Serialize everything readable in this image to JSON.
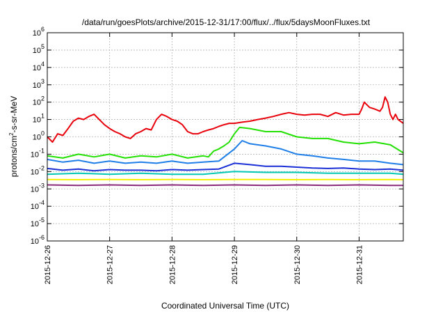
{
  "chart_data": {
    "type": "line",
    "title": "/data/run/goesPlots/archive/2015-12-31/17:00/flux/../flux/5daysMoonFluxes.txt",
    "xlabel": "Coordinated Universal Time (UTC)",
    "ylabel": "protons/cm²-s-sr-MeV",
    "ylabel_parts": [
      "protons/cm",
      "2",
      "-s-sr-MeV"
    ],
    "yscale": "log",
    "ylim": [
      1e-06,
      1000000.0
    ],
    "xlim": [
      "2015-12-26T00:00",
      "2015-12-31T17:00"
    ],
    "grid": true,
    "x_ticks": [
      "2015-12-26",
      "2015-12-27",
      "2015-12-28",
      "2015-12-29",
      "2015-12-30",
      "2015-12-31"
    ],
    "y_ticks": [
      {
        "base": "10",
        "exp": "-6"
      },
      {
        "base": "10",
        "exp": "-5"
      },
      {
        "base": "10",
        "exp": "-4"
      },
      {
        "base": "10",
        "exp": "-3"
      },
      {
        "base": "10",
        "exp": "-2"
      },
      {
        "base": "10",
        "exp": "-1"
      },
      {
        "base": "10",
        "exp": "0"
      },
      {
        "base": "10",
        "exp": "1"
      },
      {
        "base": "10",
        "exp": "2"
      },
      {
        "base": "10",
        "exp": "3"
      },
      {
        "base": "10",
        "exp": "4"
      },
      {
        "base": "10",
        "exp": "5"
      },
      {
        "base": "10",
        "exp": "6"
      }
    ],
    "series": [
      {
        "color": "#e8000b",
        "x": [
          "2015-12-26T00:00",
          "2015-12-26T02:00",
          "2015-12-26T04:00",
          "2015-12-26T06:00",
          "2015-12-26T08:00",
          "2015-12-26T10:00",
          "2015-12-26T12:00",
          "2015-12-26T14:00",
          "2015-12-26T16:00",
          "2015-12-26T18:00",
          "2015-12-26T20:00",
          "2015-12-26T22:00",
          "2015-12-27T00:00",
          "2015-12-27T02:00",
          "2015-12-27T04:00",
          "2015-12-27T06:00",
          "2015-12-27T08:00",
          "2015-12-27T10:00",
          "2015-12-27T12:00",
          "2015-12-27T14:00",
          "2015-12-27T16:00",
          "2015-12-27T18:00",
          "2015-12-27T20:00",
          "2015-12-27T22:00",
          "2015-12-28T00:00",
          "2015-12-28T02:00",
          "2015-12-28T04:00",
          "2015-12-28T06:00",
          "2015-12-28T08:00",
          "2015-12-28T10:00",
          "2015-12-28T12:00",
          "2015-12-28T14:00",
          "2015-12-28T16:00",
          "2015-12-28T18:00",
          "2015-12-28T20:00",
          "2015-12-28T22:00",
          "2015-12-29T00:00",
          "2015-12-29T03:00",
          "2015-12-29T06:00",
          "2015-12-29T09:00",
          "2015-12-29T12:00",
          "2015-12-29T15:00",
          "2015-12-29T18:00",
          "2015-12-29T21:00",
          "2015-12-30T00:00",
          "2015-12-30T03:00",
          "2015-12-30T06:00",
          "2015-12-30T09:00",
          "2015-12-30T12:00",
          "2015-12-30T15:00",
          "2015-12-30T18:00",
          "2015-12-30T21:00",
          "2015-12-31T00:00",
          "2015-12-31T01:00",
          "2015-12-31T02:00",
          "2015-12-31T04:00",
          "2015-12-31T06:00",
          "2015-12-31T08:00",
          "2015-12-31T09:00",
          "2015-12-31T10:00",
          "2015-12-31T11:00",
          "2015-12-31T12:00",
          "2015-12-31T13:00",
          "2015-12-31T14:00",
          "2015-12-31T15:00",
          "2015-12-31T17:00"
        ],
        "y": [
          1.0,
          0.5,
          1.5,
          1.2,
          3,
          8,
          12,
          10,
          15,
          20,
          10,
          5,
          3,
          2,
          1.5,
          1,
          0.8,
          1.5,
          2,
          3,
          2.5,
          10,
          20,
          15,
          10,
          8,
          5,
          2,
          1.5,
          1.5,
          2,
          2.5,
          3,
          4,
          5,
          6,
          6,
          7,
          8,
          10,
          12,
          15,
          20,
          25,
          20,
          18,
          20,
          20,
          15,
          25,
          18,
          20,
          20,
          40,
          100,
          50,
          40,
          30,
          50,
          200,
          100,
          20,
          10,
          20,
          10,
          6
        ]
      },
      {
        "color": "#22e000",
        "x": [
          "2015-12-26T00:00",
          "2015-12-26T06:00",
          "2015-12-26T12:00",
          "2015-12-26T18:00",
          "2015-12-27T00:00",
          "2015-12-27T06:00",
          "2015-12-27T12:00",
          "2015-12-27T18:00",
          "2015-12-28T00:00",
          "2015-12-28T06:00",
          "2015-12-28T12:00",
          "2015-12-28T14:00",
          "2015-12-28T16:00",
          "2015-12-28T18:00",
          "2015-12-28T20:00",
          "2015-12-28T22:00",
          "2015-12-29T00:00",
          "2015-12-29T02:00",
          "2015-12-29T06:00",
          "2015-12-29T12:00",
          "2015-12-29T18:00",
          "2015-12-30T00:00",
          "2015-12-30T06:00",
          "2015-12-30T12:00",
          "2015-12-30T18:00",
          "2015-12-31T00:00",
          "2015-12-31T06:00",
          "2015-12-31T12:00",
          "2015-12-31T17:00"
        ],
        "y": [
          0.08,
          0.06,
          0.1,
          0.07,
          0.1,
          0.06,
          0.08,
          0.07,
          0.1,
          0.06,
          0.08,
          0.07,
          0.15,
          0.2,
          0.3,
          0.5,
          1.5,
          3.5,
          3,
          2,
          2,
          1,
          0.8,
          0.8,
          0.5,
          0.4,
          0.5,
          0.35,
          0.12
        ]
      },
      {
        "color": "#1e7ee8",
        "x": [
          "2015-12-26T00:00",
          "2015-12-26T06:00",
          "2015-12-26T12:00",
          "2015-12-26T18:00",
          "2015-12-27T00:00",
          "2015-12-27T06:00",
          "2015-12-27T12:00",
          "2015-12-27T18:00",
          "2015-12-28T00:00",
          "2015-12-28T06:00",
          "2015-12-28T12:00",
          "2015-12-28T18:00",
          "2015-12-29T00:00",
          "2015-12-29T03:00",
          "2015-12-29T06:00",
          "2015-12-29T12:00",
          "2015-12-29T18:00",
          "2015-12-30T00:00",
          "2015-12-30T06:00",
          "2015-12-30T12:00",
          "2015-12-30T18:00",
          "2015-12-31T00:00",
          "2015-12-31T06:00",
          "2015-12-31T12:00",
          "2015-12-31T17:00"
        ],
        "y": [
          0.05,
          0.035,
          0.045,
          0.03,
          0.04,
          0.03,
          0.035,
          0.03,
          0.04,
          0.03,
          0.035,
          0.04,
          0.2,
          0.6,
          0.4,
          0.3,
          0.2,
          0.1,
          0.08,
          0.06,
          0.05,
          0.04,
          0.04,
          0.03,
          0.025
        ]
      },
      {
        "color": "#1a2fd6",
        "x": [
          "2015-12-26T00:00",
          "2015-12-26T06:00",
          "2015-12-26T12:00",
          "2015-12-26T18:00",
          "2015-12-27T00:00",
          "2015-12-27T06:00",
          "2015-12-27T12:00",
          "2015-12-27T18:00",
          "2015-12-28T00:00",
          "2015-12-28T06:00",
          "2015-12-28T12:00",
          "2015-12-28T18:00",
          "2015-12-29T00:00",
          "2015-12-29T06:00",
          "2015-12-29T12:00",
          "2015-12-29T18:00",
          "2015-12-30T00:00",
          "2015-12-30T06:00",
          "2015-12-30T12:00",
          "2015-12-30T18:00",
          "2015-12-31T00:00",
          "2015-12-31T06:00",
          "2015-12-31T12:00",
          "2015-12-31T17:00"
        ],
        "y": [
          0.015,
          0.012,
          0.014,
          0.011,
          0.013,
          0.012,
          0.012,
          0.011,
          0.013,
          0.012,
          0.013,
          0.014,
          0.03,
          0.025,
          0.02,
          0.02,
          0.018,
          0.016,
          0.015,
          0.016,
          0.014,
          0.013,
          0.014,
          0.012
        ]
      },
      {
        "color": "#00c8b4",
        "x": [
          "2015-12-26T00:00",
          "2015-12-26T12:00",
          "2015-12-27T00:00",
          "2015-12-27T12:00",
          "2015-12-28T00:00",
          "2015-12-28T12:00",
          "2015-12-29T00:00",
          "2015-12-29T12:00",
          "2015-12-30T00:00",
          "2015-12-30T12:00",
          "2015-12-31T00:00",
          "2015-12-31T12:00",
          "2015-12-31T17:00"
        ],
        "y": [
          0.007,
          0.008,
          0.007,
          0.008,
          0.007,
          0.007,
          0.01,
          0.009,
          0.009,
          0.008,
          0.008,
          0.008,
          0.007
        ]
      },
      {
        "color": "#f4f000",
        "x": [
          "2015-12-26T00:00",
          "2015-12-26T12:00",
          "2015-12-27T00:00",
          "2015-12-27T12:00",
          "2015-12-28T00:00",
          "2015-12-28T12:00",
          "2015-12-29T00:00",
          "2015-12-29T12:00",
          "2015-12-30T00:00",
          "2015-12-30T12:00",
          "2015-12-31T00:00",
          "2015-12-31T12:00",
          "2015-12-31T17:00"
        ],
        "y": [
          0.0035,
          0.0034,
          0.0035,
          0.0034,
          0.0035,
          0.0034,
          0.0035,
          0.0035,
          0.0034,
          0.0035,
          0.0034,
          0.0035,
          0.0034
        ]
      },
      {
        "color": "#8b2a7a",
        "x": [
          "2015-12-26T00:00",
          "2015-12-26T12:00",
          "2015-12-27T00:00",
          "2015-12-27T12:00",
          "2015-12-28T00:00",
          "2015-12-28T12:00",
          "2015-12-29T00:00",
          "2015-12-29T12:00",
          "2015-12-30T00:00",
          "2015-12-30T12:00",
          "2015-12-31T00:00",
          "2015-12-31T12:00",
          "2015-12-31T17:00"
        ],
        "y": [
          0.0017,
          0.0016,
          0.0017,
          0.0016,
          0.0017,
          0.0016,
          0.0017,
          0.0016,
          0.0017,
          0.0016,
          0.0017,
          0.0016,
          0.0016
        ]
      }
    ]
  }
}
